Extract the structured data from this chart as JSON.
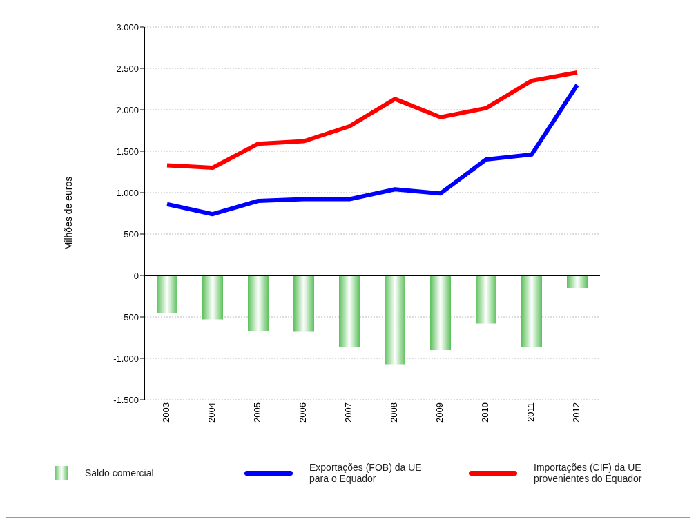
{
  "chart_data": {
    "type": "bar",
    "ylabel": "Milhões de euros",
    "categories": [
      "2003",
      "2004",
      "2005",
      "2006",
      "2007",
      "2008",
      "2009",
      "2010",
      "2011",
      "2012"
    ],
    "series": [
      {
        "name": "Saldo comercial",
        "color": "#5cc05c",
        "values": [
          -450,
          -530,
          -670,
          -680,
          -860,
          -1070,
          -900,
          -580,
          -860,
          -150
        ]
      },
      {
        "name": "Exportações (FOB) da UE para o Equador",
        "type": "line",
        "color": "#0000ff",
        "values": [
          860,
          740,
          900,
          920,
          920,
          1040,
          990,
          1400,
          1460,
          2300
        ]
      },
      {
        "name": "Importações (CIF) da UE provenientes do Equador",
        "type": "line",
        "color": "#ff0000",
        "values": [
          1330,
          1300,
          1590,
          1620,
          1800,
          2130,
          1910,
          2020,
          2350,
          2450
        ]
      }
    ],
    "ylim": [
      -1500,
      3000
    ],
    "yticks": [
      {
        "value": -1500,
        "label": "-1.500"
      },
      {
        "value": -1000,
        "label": "-1.000"
      },
      {
        "value": -500,
        "label": "-500"
      },
      {
        "value": 0,
        "label": "0"
      },
      {
        "value": 500,
        "label": "500"
      },
      {
        "value": 1000,
        "label": "1.000"
      },
      {
        "value": 1500,
        "label": "1.500"
      },
      {
        "value": 2000,
        "label": "2.000"
      },
      {
        "value": 2500,
        "label": "2.500"
      },
      {
        "value": 3000,
        "label": "3.000"
      }
    ],
    "grid": "y",
    "legend": "bottom",
    "marker": "none",
    "line_style": "solid"
  }
}
